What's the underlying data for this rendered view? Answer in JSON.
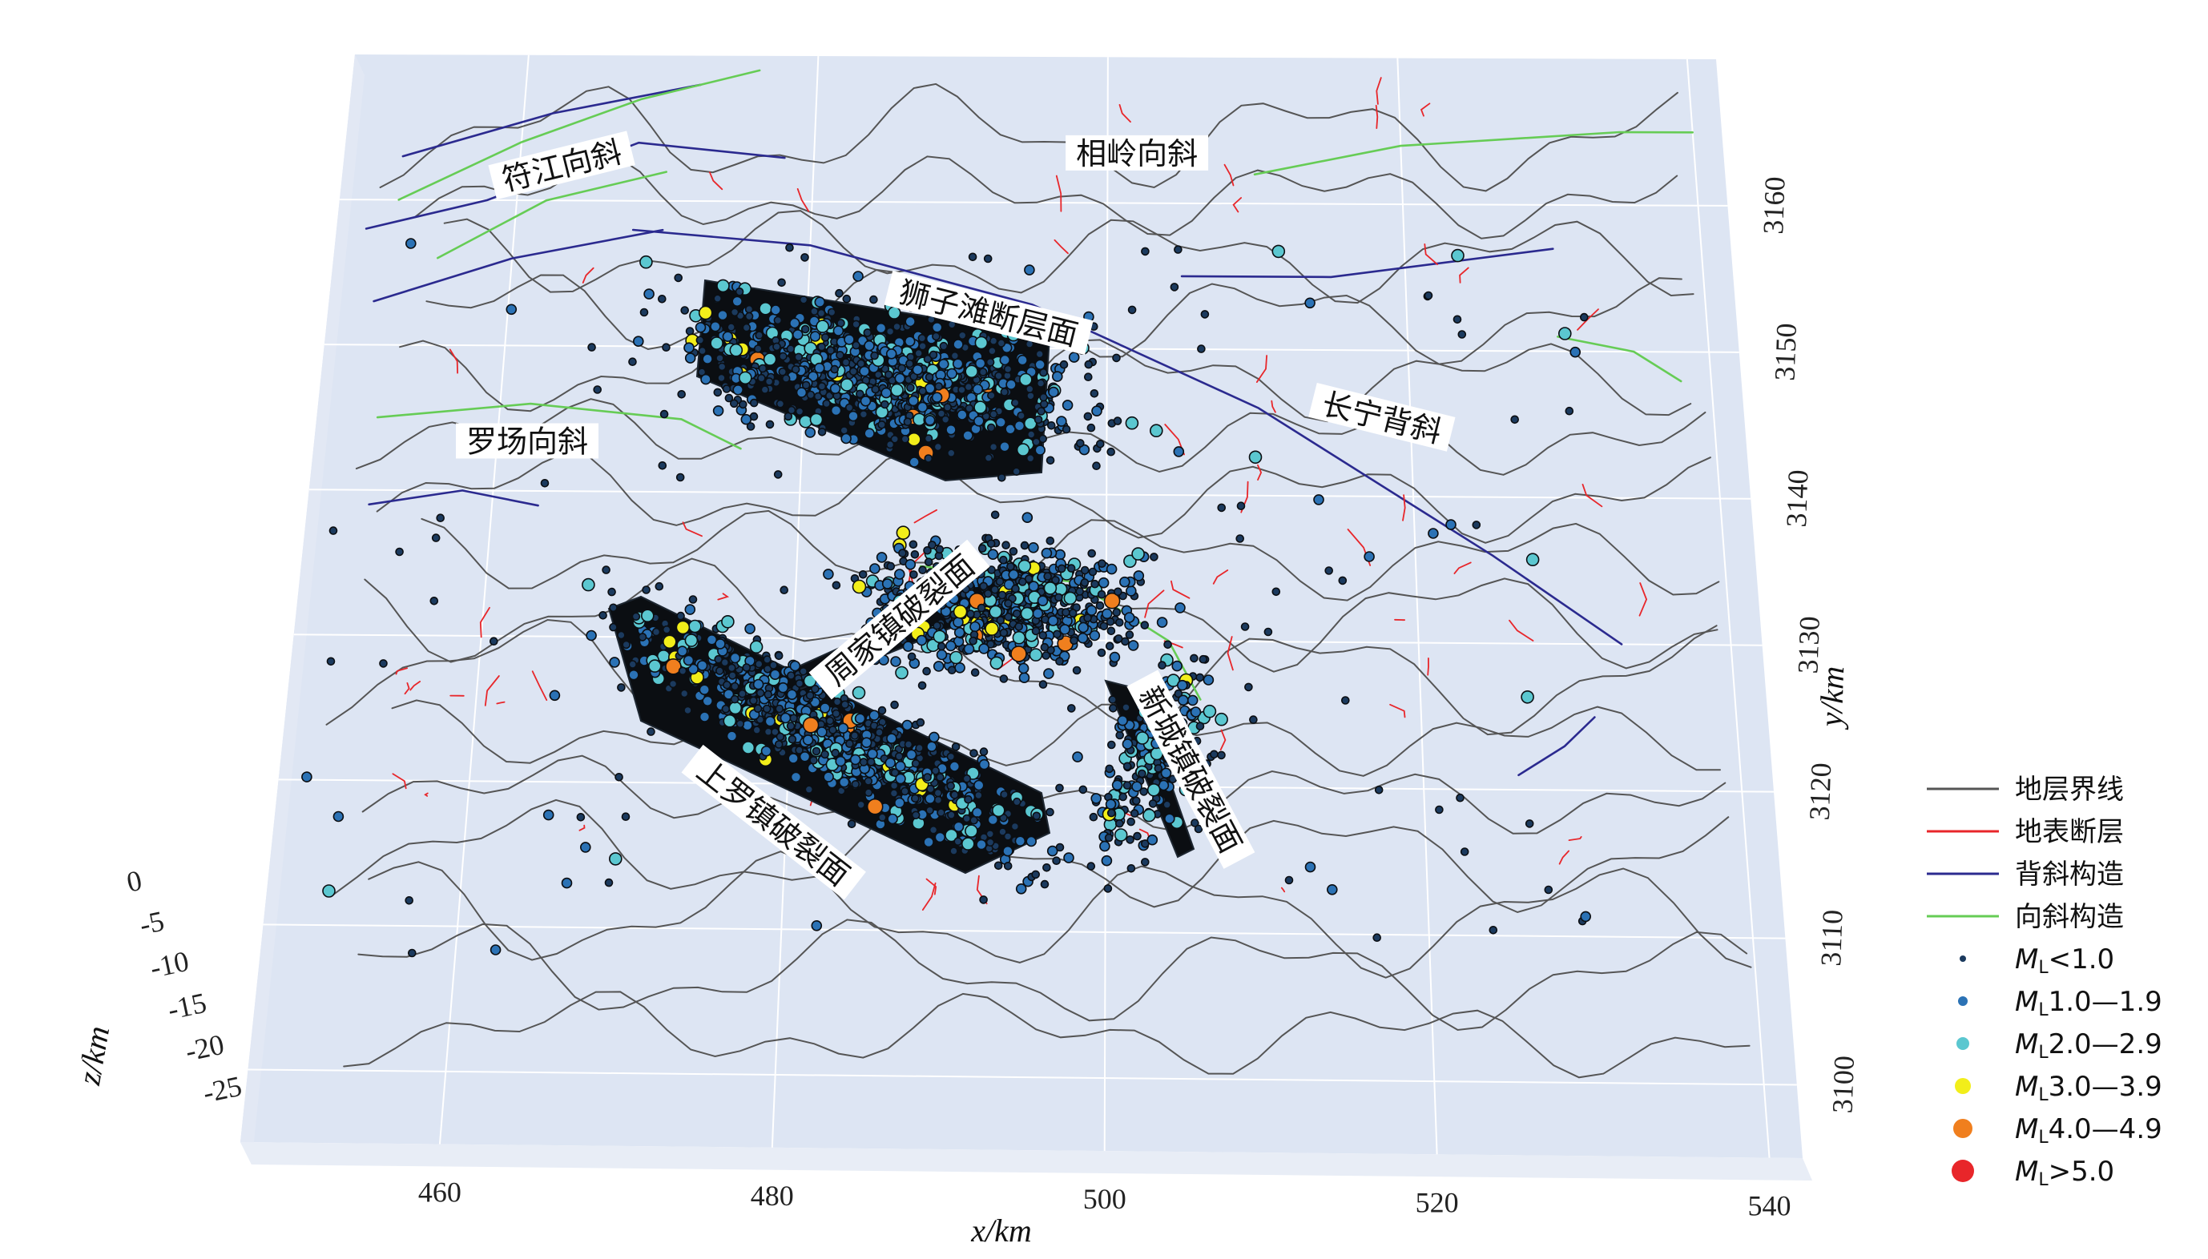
{
  "chart_data": {
    "type": "scatter",
    "projection": "3d",
    "xlabel": "x/km",
    "ylabel": "y/km",
    "zlabel": "z/km",
    "x_ticks": [
      460,
      480,
      500,
      520,
      540
    ],
    "y_ticks": [
      3100,
      3110,
      3120,
      3130,
      3140,
      3150,
      3160
    ],
    "z_ticks": [
      0,
      -5,
      -10,
      -15,
      -20,
      -25
    ],
    "xlim": [
      448,
      542
    ],
    "ylim": [
      3095,
      3170
    ],
    "zlim": [
      -27,
      0
    ],
    "grid": true,
    "legend_position": "right",
    "annotations": [
      {
        "id": "fujiang",
        "text": "符江向斜",
        "x": 463,
        "y": 3162,
        "rotate": -14
      },
      {
        "id": "xiangling",
        "text": "相岭向斜",
        "x": 502,
        "y": 3163,
        "rotate": 0
      },
      {
        "id": "shizitan",
        "text": "狮子滩断层面",
        "x": 492,
        "y": 3152,
        "rotate": 14
      },
      {
        "id": "luochang",
        "text": "罗场向斜",
        "x": 462,
        "y": 3143,
        "rotate": 0
      },
      {
        "id": "changning",
        "text": "长宁背斜",
        "x": 518,
        "y": 3145,
        "rotate": 14
      },
      {
        "id": "zhoujia",
        "text": "周家镇破裂面",
        "x": 487,
        "y": 3131,
        "rotate": -40
      },
      {
        "id": "xincheng",
        "text": "新城镇破裂面",
        "x": 505,
        "y": 3121,
        "rotate": 62
      },
      {
        "id": "shangluo",
        "text": "上罗镇破裂面",
        "x": 479,
        "y": 3117,
        "rotate": 38
      }
    ],
    "legend": [
      {
        "label": "地层界线",
        "kind": "line",
        "color": "#555555"
      },
      {
        "label": "地表断层",
        "kind": "line",
        "color": "#e8262a"
      },
      {
        "label": "背斜构造",
        "kind": "line",
        "color": "#2b2a8f"
      },
      {
        "label": "向斜构造",
        "kind": "line",
        "color": "#66cc55"
      },
      {
        "label": "M",
        "sub": "L",
        "rest": "<1.0",
        "kind": "dot",
        "color": "#1b3a5e",
        "size": 4
      },
      {
        "label": "M",
        "sub": "L",
        "rest": "1.0—1.9",
        "kind": "dot",
        "color": "#2b72b5",
        "size": 6
      },
      {
        "label": "M",
        "sub": "L",
        "rest": "2.0—2.9",
        "kind": "dot",
        "color": "#5bc7d0",
        "size": 8
      },
      {
        "label": "M",
        "sub": "L",
        "rest": "3.0—3.9",
        "kind": "dot",
        "color": "#f2ee1a",
        "size": 10
      },
      {
        "label": "M",
        "sub": "L",
        "rest": "4.0—4.9",
        "kind": "dot",
        "color": "#f07f1e",
        "size": 12
      },
      {
        "label": "M",
        "sub": "L",
        "rest": ">5.0",
        "kind": "dot",
        "color": "#e8262a",
        "size": 14
      }
    ],
    "colors": {
      "plane": "#dde5f3",
      "grid": "#ffffff",
      "stratum": "#555555",
      "fault": "#e8262a",
      "anticline": "#2b2a8f",
      "syncline": "#66cc55",
      "rupture": "#0b0e12"
    }
  }
}
